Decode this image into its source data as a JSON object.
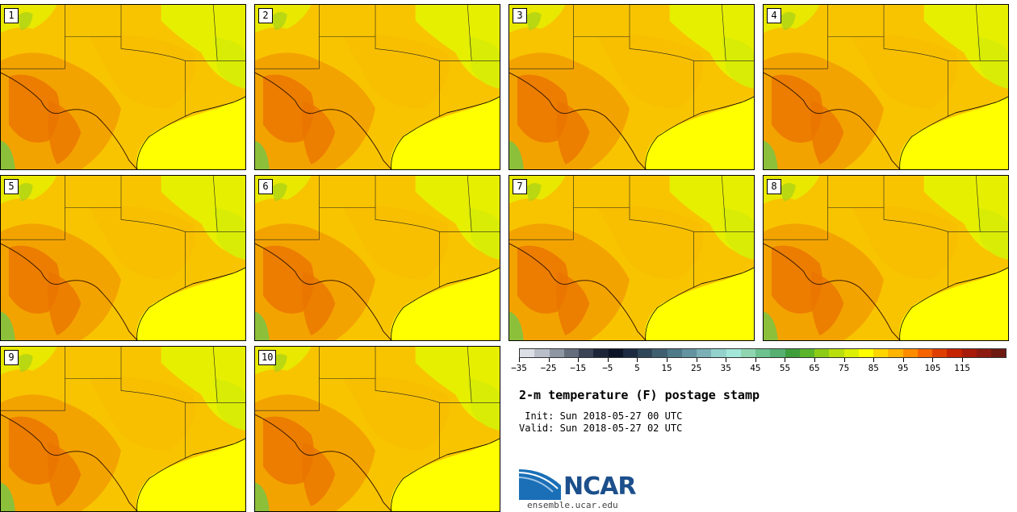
{
  "stamps": [
    {
      "label": "1"
    },
    {
      "label": "2"
    },
    {
      "label": "3"
    },
    {
      "label": "4"
    },
    {
      "label": "5"
    },
    {
      "label": "6"
    },
    {
      "label": "7"
    },
    {
      "label": "8"
    },
    {
      "label": "9"
    },
    {
      "label": "10"
    }
  ],
  "colorbar": {
    "colors": [
      "#dcdfe6",
      "#b9bec9",
      "#8f96a3",
      "#646d7c",
      "#3b4455",
      "#1c2638",
      "#0b1426",
      "#1b2a40",
      "#2e4658",
      "#3f5f70",
      "#4f7a88",
      "#63939f",
      "#7bb0b6",
      "#92d1cc",
      "#a2e8d8",
      "#8fd6b0",
      "#6dc28f",
      "#55b071",
      "#3f9e3c",
      "#5ab52b",
      "#8ccc16",
      "#b8df0d",
      "#dcef06",
      "#ffff00",
      "#ffd500",
      "#ffb400",
      "#ff8c00",
      "#f56400",
      "#e03e00",
      "#c62300",
      "#a81a0a",
      "#8c1a10",
      "#6e1a12"
    ],
    "tick_values": [
      "−35",
      "−25",
      "−15",
      "−5",
      "5",
      "15",
      "25",
      "35",
      "45",
      "55",
      "65",
      "75",
      "85",
      "95",
      "105",
      "115"
    ]
  },
  "title": "2-m temperature (F) postage stamp",
  "init": " Init: Sun 2018-05-27 00 UTC",
  "valid": "Valid: Sun 2018-05-27 02 UTC",
  "logo_text": "NCAR",
  "site": "ensemble.ucar.edu"
}
